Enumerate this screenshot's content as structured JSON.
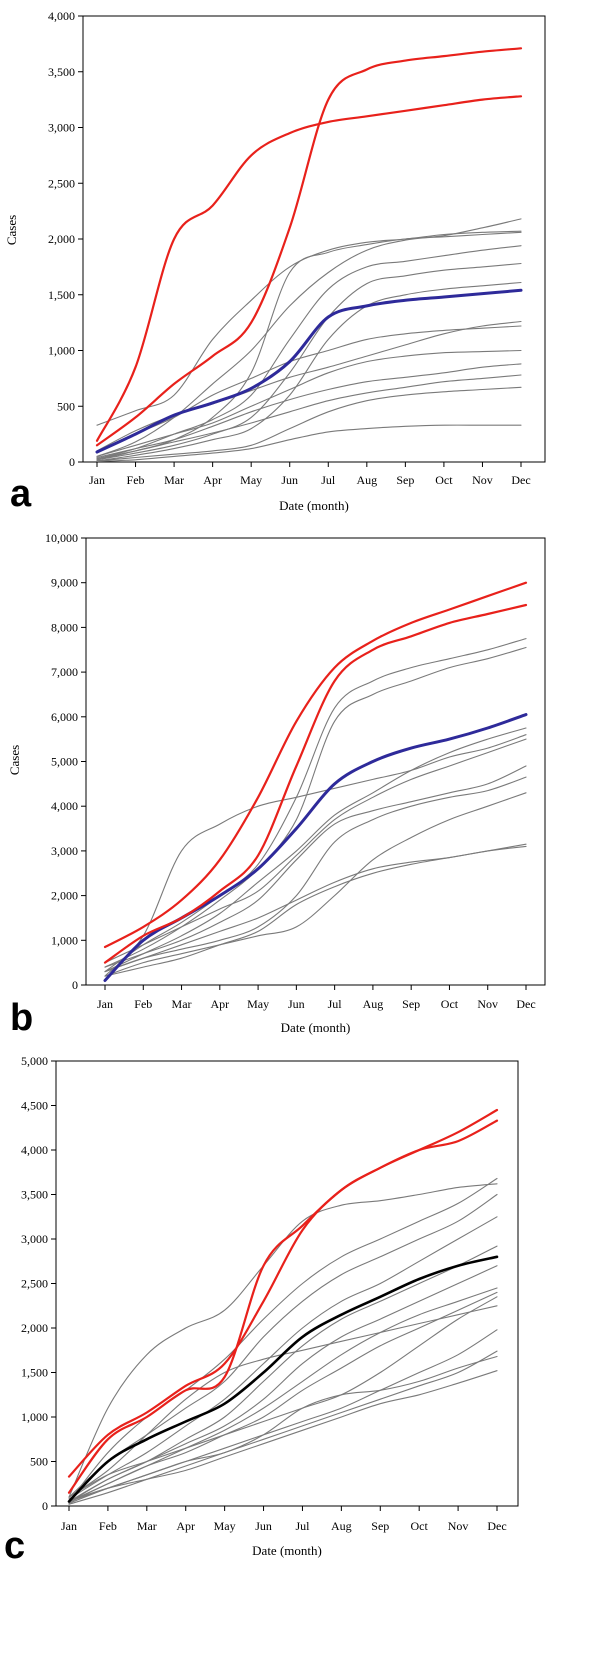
{
  "colors": {
    "highlight": "#e8211b",
    "mean": "#2e2a9a",
    "mean_c": "#000000",
    "other": "#7a7a7a",
    "axis": "#000000"
  },
  "chart_data": [
    {
      "panel": "a",
      "type": "line",
      "x": [
        "Jan",
        "Feb",
        "Mar",
        "Apr",
        "May",
        "Jun",
        "Jul",
        "Aug",
        "Sep",
        "Oct",
        "Nov",
        "Dec"
      ],
      "xlabel": "Date (month)",
      "ylabel": "Cases",
      "ylim": [
        0,
        4000
      ],
      "yticks": [
        0,
        500,
        1000,
        1500,
        2000,
        2500,
        3000,
        3500,
        4000
      ],
      "ytick_labels": [
        "0",
        "500",
        "1,000",
        "1,500",
        "2,000",
        "2,500",
        "3,000",
        "3,500",
        "4,000"
      ],
      "grid": false,
      "series": [
        {
          "role": "highlight",
          "values": [
            190,
            850,
            2000,
            2300,
            2750,
            2950,
            3050,
            3100,
            3150,
            3200,
            3250,
            3280
          ]
        },
        {
          "role": "highlight",
          "values": [
            150,
            400,
            700,
            950,
            1250,
            2100,
            3250,
            3520,
            3600,
            3640,
            3680,
            3710
          ]
        },
        {
          "role": "mean",
          "values": [
            90,
            250,
            420,
            530,
            660,
            900,
            1300,
            1400,
            1450,
            1480,
            1510,
            1540
          ]
        },
        {
          "role": "other",
          "values": [
            330,
            460,
            600,
            1100,
            1450,
            1750,
            1900,
            1970,
            2000,
            2040,
            2060,
            2070
          ]
        },
        {
          "role": "other",
          "values": [
            50,
            180,
            400,
            700,
            1000,
            1400,
            1700,
            1900,
            1990,
            2030,
            2100,
            2180
          ]
        },
        {
          "role": "other",
          "values": [
            20,
            100,
            200,
            400,
            800,
            1700,
            1880,
            1950,
            2000,
            2020,
            2040,
            2060
          ]
        },
        {
          "role": "other",
          "values": [
            30,
            120,
            250,
            380,
            600,
            1100,
            1550,
            1750,
            1800,
            1850,
            1900,
            1940
          ]
        },
        {
          "role": "other",
          "values": [
            20,
            80,
            150,
            250,
            400,
            800,
            1300,
            1600,
            1670,
            1720,
            1750,
            1780
          ]
        },
        {
          "role": "other",
          "values": [
            10,
            60,
            120,
            200,
            300,
            600,
            1100,
            1400,
            1500,
            1550,
            1580,
            1610
          ]
        },
        {
          "role": "other",
          "values": [
            80,
            250,
            400,
            600,
            750,
            900,
            1000,
            1100,
            1150,
            1180,
            1200,
            1220
          ]
        },
        {
          "role": "other",
          "values": [
            100,
            280,
            420,
            520,
            640,
            760,
            850,
            950,
            1050,
            1150,
            1220,
            1260
          ]
        },
        {
          "role": "other",
          "values": [
            50,
            150,
            250,
            350,
            500,
            650,
            800,
            900,
            950,
            980,
            990,
            1000
          ]
        },
        {
          "role": "other",
          "values": [
            40,
            120,
            200,
            320,
            450,
            560,
            650,
            720,
            760,
            800,
            850,
            880
          ]
        },
        {
          "role": "other",
          "values": [
            30,
            100,
            180,
            260,
            350,
            450,
            550,
            620,
            670,
            720,
            750,
            780
          ]
        },
        {
          "role": "other",
          "values": [
            10,
            40,
            70,
            100,
            150,
            300,
            450,
            550,
            600,
            630,
            650,
            670
          ]
        },
        {
          "role": "other",
          "values": [
            5,
            20,
            50,
            80,
            120,
            200,
            270,
            300,
            320,
            330,
            330,
            330
          ]
        }
      ]
    },
    {
      "panel": "b",
      "type": "line",
      "x": [
        "Jan",
        "Feb",
        "Mar",
        "Apr",
        "May",
        "Jun",
        "Jul",
        "Aug",
        "Sep",
        "Oct",
        "Nov",
        "Dec"
      ],
      "xlabel": "Date (month)",
      "ylabel": "Cases",
      "ylim": [
        0,
        10000
      ],
      "yticks": [
        0,
        1000,
        2000,
        3000,
        4000,
        5000,
        6000,
        7000,
        8000,
        9000,
        10000
      ],
      "ytick_labels": [
        "0",
        "1,000",
        "2,000",
        "3,000",
        "4,000",
        "5,000",
        "6,000",
        "7,000",
        "8,000",
        "9,000",
        "10,000"
      ],
      "grid": false,
      "series": [
        {
          "role": "highlight",
          "values": [
            850,
            1300,
            1900,
            2800,
            4200,
            5900,
            7100,
            7700,
            8100,
            8400,
            8700,
            9000
          ]
        },
        {
          "role": "highlight",
          "values": [
            500,
            1100,
            1500,
            2100,
            2900,
            4900,
            6800,
            7500,
            7800,
            8100,
            8300,
            8500
          ]
        },
        {
          "role": "mean",
          "values": [
            100,
            1000,
            1500,
            2000,
            2600,
            3500,
            4500,
            5000,
            5300,
            5500,
            5750,
            6050
          ]
        },
        {
          "role": "other",
          "values": [
            300,
            900,
            1400,
            2000,
            2700,
            4200,
            6200,
            6800,
            7100,
            7300,
            7500,
            7750
          ]
        },
        {
          "role": "other",
          "values": [
            400,
            800,
            1300,
            1900,
            2600,
            3700,
            5900,
            6500,
            6800,
            7100,
            7300,
            7550
          ]
        },
        {
          "role": "other",
          "values": [
            200,
            1100,
            3000,
            3600,
            4000,
            4200,
            4400,
            4600,
            4800,
            5100,
            5300,
            5600
          ]
        },
        {
          "role": "other",
          "values": [
            300,
            700,
            1100,
            1600,
            2300,
            3000,
            3800,
            4300,
            4800,
            5200,
            5500,
            5750
          ]
        },
        {
          "role": "other",
          "values": [
            500,
            900,
            1300,
            1700,
            2100,
            2900,
            3700,
            4200,
            4600,
            4900,
            5200,
            5500
          ]
        },
        {
          "role": "other",
          "values": [
            400,
            700,
            1000,
            1400,
            1900,
            2800,
            3600,
            3900,
            4100,
            4300,
            4500,
            4900
          ]
        },
        {
          "role": "other",
          "values": [
            300,
            600,
            800,
            1000,
            1300,
            2000,
            3200,
            3700,
            4000,
            4200,
            4350,
            4650
          ]
        },
        {
          "role": "other",
          "values": [
            200,
            500,
            700,
            900,
            1100,
            1300,
            2000,
            2800,
            3300,
            3700,
            4000,
            4300
          ]
        },
        {
          "role": "other",
          "values": [
            200,
            400,
            600,
            900,
            1200,
            1800,
            2200,
            2500,
            2700,
            2850,
            3000,
            3150
          ]
        },
        {
          "role": "other",
          "values": [
            300,
            600,
            900,
            1200,
            1500,
            1900,
            2300,
            2600,
            2750,
            2850,
            3000,
            3100
          ]
        }
      ]
    },
    {
      "panel": "c",
      "type": "line",
      "x": [
        "Jan",
        "Feb",
        "Mar",
        "Apr",
        "May",
        "Jun",
        "Jul",
        "Aug",
        "Sep",
        "Oct",
        "Nov",
        "Dec"
      ],
      "xlabel": "Date (month)",
      "ylabel": "",
      "ylim": [
        0,
        5000
      ],
      "yticks": [
        0,
        500,
        1000,
        1500,
        2000,
        2500,
        3000,
        3500,
        4000,
        4500,
        5000
      ],
      "ytick_labels": [
        "0",
        "500",
        "1,000",
        "1,500",
        "2,000",
        "2,500",
        "3,000",
        "3,500",
        "4,000",
        "4,500",
        "5,000"
      ],
      "grid": false,
      "series": [
        {
          "role": "highlight",
          "values": [
            330,
            800,
            1050,
            1350,
            1600,
            2300,
            3100,
            3550,
            3800,
            4000,
            4200,
            4450
          ]
        },
        {
          "role": "highlight",
          "values": [
            150,
            750,
            1000,
            1300,
            1450,
            2700,
            3150,
            3550,
            3800,
            4000,
            4100,
            4330
          ]
        },
        {
          "role": "mean_c",
          "values": [
            50,
            500,
            750,
            950,
            1150,
            1500,
            1900,
            2150,
            2350,
            2550,
            2700,
            2800
          ]
        },
        {
          "role": "other",
          "values": [
            100,
            1100,
            1700,
            2000,
            2200,
            2700,
            3200,
            3380,
            3430,
            3500,
            3580,
            3620
          ]
        },
        {
          "role": "other",
          "values": [
            50,
            600,
            1000,
            1300,
            1650,
            2100,
            2500,
            2800,
            3000,
            3200,
            3400,
            3680
          ]
        },
        {
          "role": "other",
          "values": [
            100,
            500,
            800,
            1100,
            1400,
            1900,
            2300,
            2600,
            2800,
            3000,
            3200,
            3500
          ]
        },
        {
          "role": "other",
          "values": [
            80,
            350,
            600,
            900,
            1200,
            1600,
            2000,
            2300,
            2500,
            2750,
            3000,
            3250
          ]
        },
        {
          "role": "other",
          "values": [
            50,
            300,
            500,
            750,
            1000,
            1400,
            1800,
            2100,
            2300,
            2500,
            2700,
            2920
          ]
        },
        {
          "role": "other",
          "values": [
            40,
            300,
            500,
            700,
            900,
            1200,
            1600,
            1900,
            2100,
            2300,
            2500,
            2700
          ]
        },
        {
          "role": "other",
          "values": [
            50,
            250,
            450,
            650,
            850,
            1100,
            1400,
            1700,
            1950,
            2150,
            2300,
            2450
          ]
        },
        {
          "role": "other",
          "values": [
            40,
            250,
            450,
            600,
            800,
            1000,
            1300,
            1550,
            1800,
            2000,
            2200,
            2400
          ]
        },
        {
          "role": "other",
          "values": [
            100,
            350,
            500,
            650,
            800,
            950,
            1100,
            1250,
            1500,
            1800,
            2100,
            2350
          ]
        },
        {
          "role": "other",
          "values": [
            100,
            400,
            800,
            1200,
            1500,
            1650,
            1750,
            1850,
            1950,
            2050,
            2150,
            2250
          ]
        },
        {
          "role": "other",
          "values": [
            30,
            200,
            350,
            500,
            650,
            800,
            950,
            1100,
            1300,
            1500,
            1700,
            1980
          ]
        },
        {
          "role": "other",
          "values": [
            20,
            150,
            300,
            450,
            600,
            750,
            900,
            1050,
            1200,
            1350,
            1500,
            1740
          ]
        },
        {
          "role": "other",
          "values": [
            50,
            200,
            350,
            500,
            600,
            800,
            1100,
            1250,
            1300,
            1400,
            1550,
            1680
          ]
        },
        {
          "role": "other",
          "values": [
            60,
            200,
            300,
            400,
            550,
            700,
            850,
            1000,
            1150,
            1250,
            1380,
            1520
          ]
        }
      ]
    }
  ]
}
